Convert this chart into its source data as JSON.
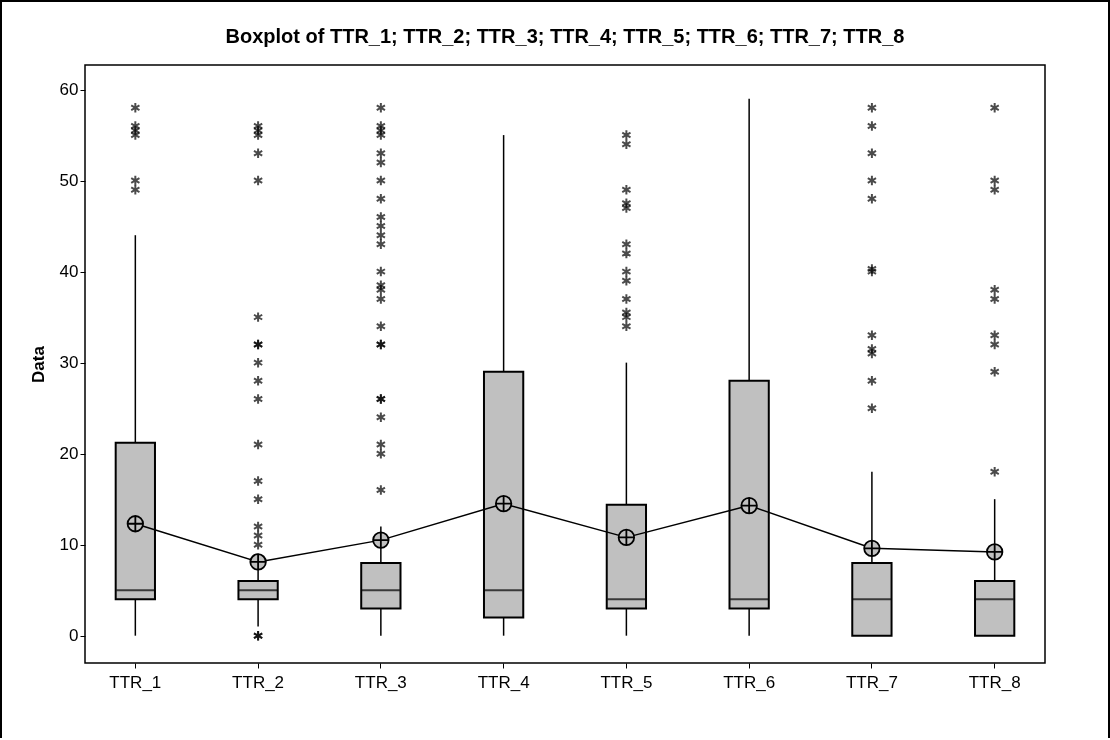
{
  "chart_data": {
    "type": "box",
    "title": "Boxplot of TTR_1; TTR_2; TTR_3; TTR_4; TTR_5; TTR_6; TTR_7; TTR_8",
    "ylabel": "Data",
    "categories": [
      "TTR_1",
      "TTR_2",
      "TTR_3",
      "TTR_4",
      "TTR_5",
      "TTR_6",
      "TTR_7",
      "TTR_8"
    ],
    "ylim": [
      -3,
      62.7
    ],
    "yticks": [
      0,
      10,
      20,
      30,
      40,
      50,
      60
    ],
    "color": "#c0c0c0",
    "boxes": [
      {
        "low": 0,
        "q1": 4,
        "median": 5,
        "q3": 21.2,
        "high": 44,
        "outliers": [
          49,
          50,
          55,
          55.5,
          56,
          58
        ]
      },
      {
        "low": 1,
        "q1": 4,
        "median": 5,
        "q3": 6,
        "high": 9,
        "outliers": [
          0,
          0,
          10,
          11,
          12,
          15,
          17,
          21,
          26,
          28,
          30,
          32,
          32,
          35,
          50,
          53,
          55,
          55.5,
          56
        ]
      },
      {
        "low": 0,
        "q1": 3,
        "median": 5,
        "q3": 8,
        "high": 12,
        "outliers": [
          16,
          20,
          21,
          24,
          26,
          26,
          32,
          32,
          34,
          37,
          38,
          38.5,
          40,
          43,
          44,
          45,
          46,
          48,
          50,
          52,
          53,
          55,
          55.5,
          56,
          58
        ]
      },
      {
        "low": 0,
        "q1": 2,
        "median": 5,
        "q3": 29,
        "high": 55
      },
      {
        "low": 0,
        "q1": 3,
        "median": 4,
        "q3": 14.4,
        "high": 30,
        "outliers": [
          34,
          35,
          35.5,
          37,
          39,
          40,
          42,
          43,
          47,
          47.5,
          49,
          54,
          55
        ]
      },
      {
        "low": 0,
        "q1": 3,
        "median": 4,
        "q3": 28,
        "high": 59
      },
      {
        "low": 0,
        "q1": 0,
        "median": 4,
        "q3": 8,
        "high": 18,
        "outliers": [
          25,
          28,
          31,
          31.5,
          33,
          40,
          40.3,
          48,
          50,
          53,
          56,
          58
        ]
      },
      {
        "low": 0,
        "q1": 0,
        "median": 4,
        "q3": 6,
        "high": 15,
        "outliers": [
          18,
          29,
          32,
          33,
          37,
          38,
          49,
          50,
          58
        ]
      }
    ],
    "series": [
      {
        "type": "line",
        "color": "#000000",
        "marker": "circle",
        "values": [
          12.3,
          8.1,
          10.5,
          14.5,
          10.8,
          14.3,
          9.6,
          9.2
        ]
      }
    ]
  }
}
